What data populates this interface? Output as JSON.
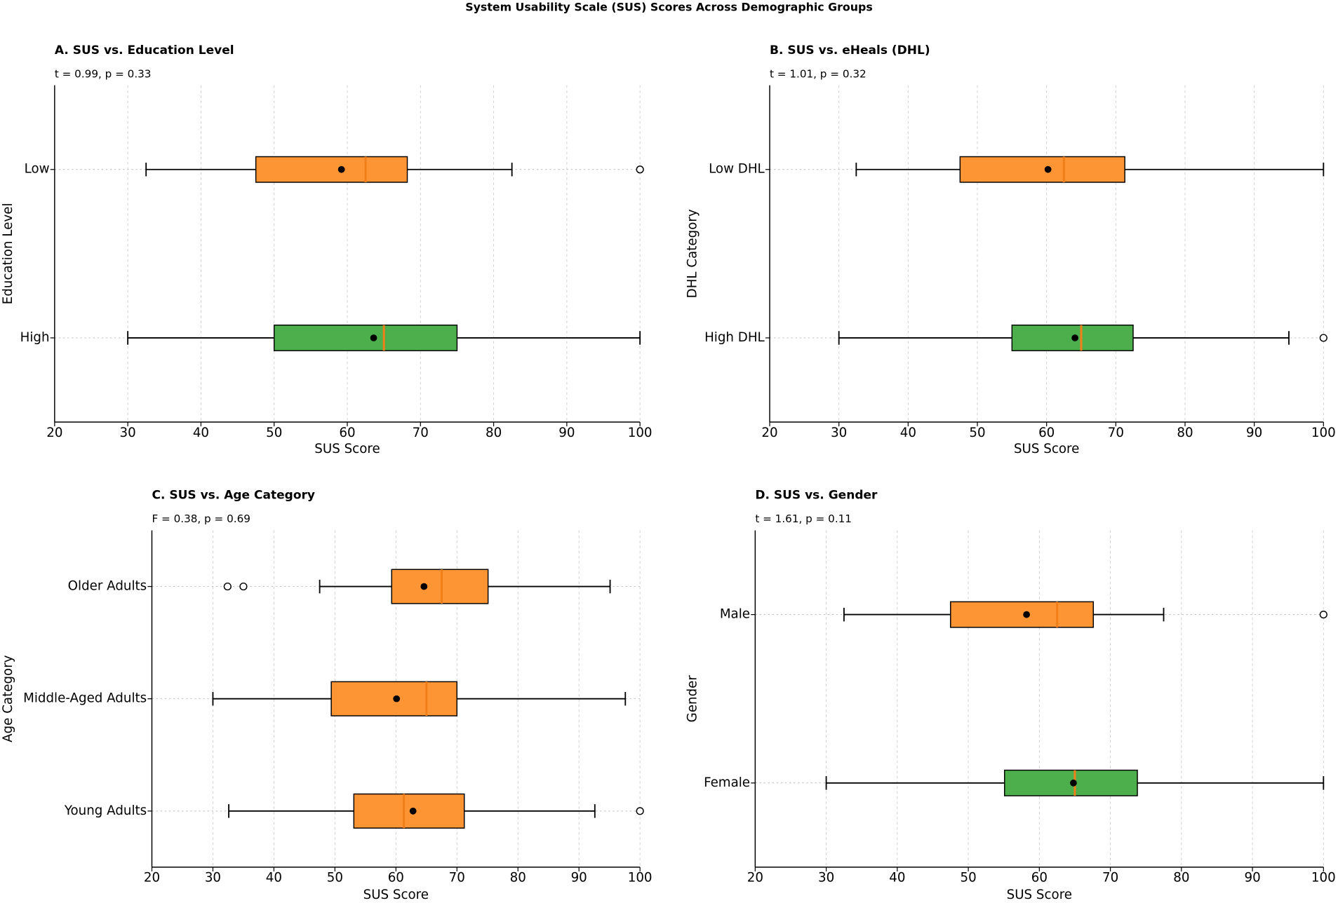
{
  "title": "System Usability Scale (SUS) Scores Across Demographic Groups",
  "chart_data": [
    {
      "type": "box",
      "title": "A. SUS vs. Education Level",
      "annotation": "t = 0.99, p = 0.33",
      "xlabel": "SUS Score",
      "ylabel": "Education Level",
      "xlim": [
        20,
        100
      ],
      "xticks": [
        20,
        30,
        40,
        50,
        60,
        70,
        80,
        90,
        100
      ],
      "grid": true,
      "median_color": "#f07f1a",
      "categories": [
        "Low",
        "High"
      ],
      "boxes": [
        {
          "color": "#fd9535",
          "whislo": 32.5,
          "q1": 47.5,
          "median": 62.5,
          "q3": 68.2,
          "whishi": 82.5,
          "mean": 59.2,
          "fliers": [
            100
          ]
        },
        {
          "color": "#4caf4c",
          "whislo": 30,
          "q1": 50,
          "median": 65,
          "q3": 75,
          "whishi": 100,
          "mean": 63.6
        }
      ]
    },
    {
      "type": "box",
      "title": "B. SUS vs. eHeals (DHL)",
      "annotation": "t = 1.01, p = 0.32",
      "xlabel": "SUS Score",
      "ylabel": "DHL Category",
      "xlim": [
        20,
        100
      ],
      "xticks": [
        20,
        30,
        40,
        50,
        60,
        70,
        80,
        90,
        100
      ],
      "grid": true,
      "median_color": "#f07f1a",
      "categories": [
        "Low DHL",
        "High DHL"
      ],
      "boxes": [
        {
          "color": "#fd9535",
          "whislo": 32.5,
          "q1": 47.5,
          "median": 62.5,
          "q3": 71.3,
          "whishi": 100,
          "mean": 60.2
        },
        {
          "color": "#4caf4c",
          "whislo": 30,
          "q1": 55,
          "median": 65,
          "q3": 72.5,
          "whishi": 95,
          "mean": 64.1,
          "fliers": [
            100
          ]
        }
      ]
    },
    {
      "type": "box",
      "title": "C. SUS vs. Age Category",
      "annotation": "F = 0.38, p = 0.69",
      "xlabel": "SUS Score",
      "ylabel": "Age Category",
      "xlim": [
        20,
        100
      ],
      "xticks": [
        20,
        30,
        40,
        50,
        60,
        70,
        80,
        90,
        100
      ],
      "grid": true,
      "median_color": "#f07f1a",
      "categories": [
        "Older Adults",
        "Middle-Aged Adults",
        "Young Adults"
      ],
      "boxes": [
        {
          "color": "#fd9535",
          "whislo": 47.5,
          "q1": 59.3,
          "median": 67.5,
          "q3": 75.1,
          "whishi": 95.1,
          "mean": 64.6,
          "fliers": [
            32.4,
            35
          ]
        },
        {
          "color": "#fd9535",
          "whislo": 30,
          "q1": 49.4,
          "median": 65,
          "q3": 70,
          "whishi": 97.6,
          "mean": 60.1
        },
        {
          "color": "#fd9535",
          "whislo": 32.6,
          "q1": 53.1,
          "median": 61.3,
          "q3": 71.2,
          "whishi": 92.6,
          "mean": 62.8,
          "fliers": [
            100
          ]
        }
      ]
    },
    {
      "type": "box",
      "title": "D. SUS vs. Gender",
      "annotation": "t = 1.61, p = 0.11",
      "xlabel": "SUS Score",
      "ylabel": "Gender",
      "xlim": [
        20,
        100
      ],
      "xticks": [
        20,
        30,
        40,
        50,
        60,
        70,
        80,
        90,
        100
      ],
      "grid": true,
      "median_color": "#f07f1a",
      "categories": [
        "Male",
        "Female"
      ],
      "boxes": [
        {
          "color": "#fd9535",
          "whislo": 32.5,
          "q1": 47.5,
          "median": 62.5,
          "q3": 67.6,
          "whishi": 77.5,
          "mean": 58.2,
          "fliers": [
            100
          ]
        },
        {
          "color": "#4caf4c",
          "whislo": 30,
          "q1": 55.1,
          "median": 65,
          "q3": 73.8,
          "whishi": 100,
          "mean": 64.8
        }
      ]
    }
  ]
}
